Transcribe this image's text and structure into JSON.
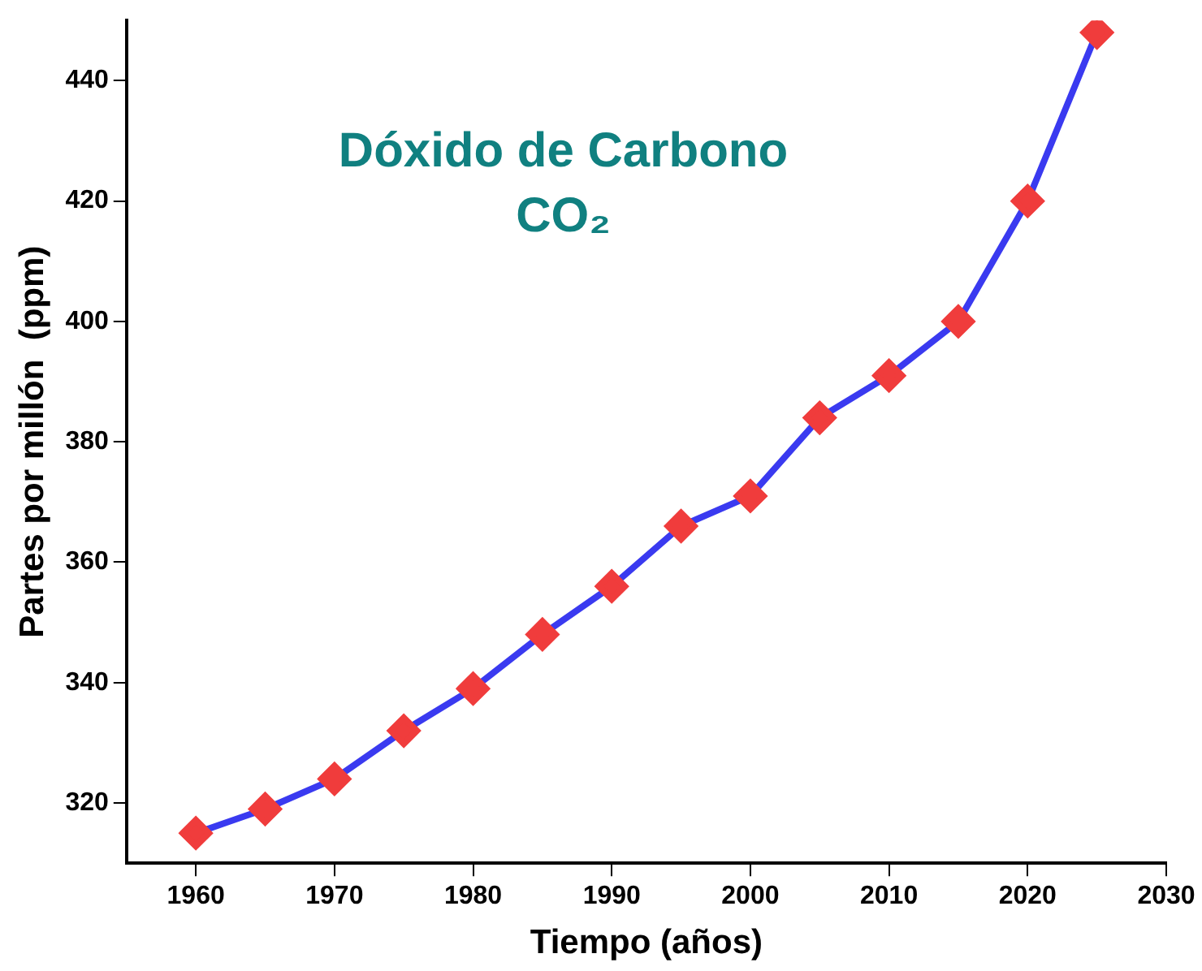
{
  "chart_data": {
    "type": "line",
    "title": "Dóxido de Carbono",
    "subtitle": "CO₂",
    "xlabel": "Tiempo (años)",
    "ylabel": "Partes por millón  (ppm)",
    "x": [
      1960,
      1965,
      1970,
      1975,
      1980,
      1985,
      1990,
      1995,
      2000,
      2005,
      2010,
      2015,
      2020,
      2025
    ],
    "series": [
      {
        "color": "#3a3af0",
        "colors": [
          "#f03c3c",
          "#f03c3c",
          "#f03c3c",
          "#f03c3c",
          "#f03c3c",
          "#f03c3c",
          "#f03c3c",
          "#f03c3c",
          "#f03c3c",
          "#f03c3c",
          "#f03c3c",
          "#f03c3c",
          "#f03c3c",
          "#f03c3c"
        ],
        "values": [
          315,
          319,
          324,
          332,
          339,
          348,
          356,
          366,
          371,
          384,
          391,
          400,
          420,
          448
        ]
      }
    ],
    "xlim": [
      1955,
      2030
    ],
    "xticks": [
      1960,
      1970,
      1980,
      1990,
      2000,
      2010,
      2020,
      2030
    ],
    "ylim": [
      310,
      450
    ],
    "yticks": [
      320,
      340,
      360,
      380,
      400,
      420,
      440
    ],
    "grid": false,
    "legend": false,
    "marker": "diamond",
    "line_style": "solid"
  }
}
